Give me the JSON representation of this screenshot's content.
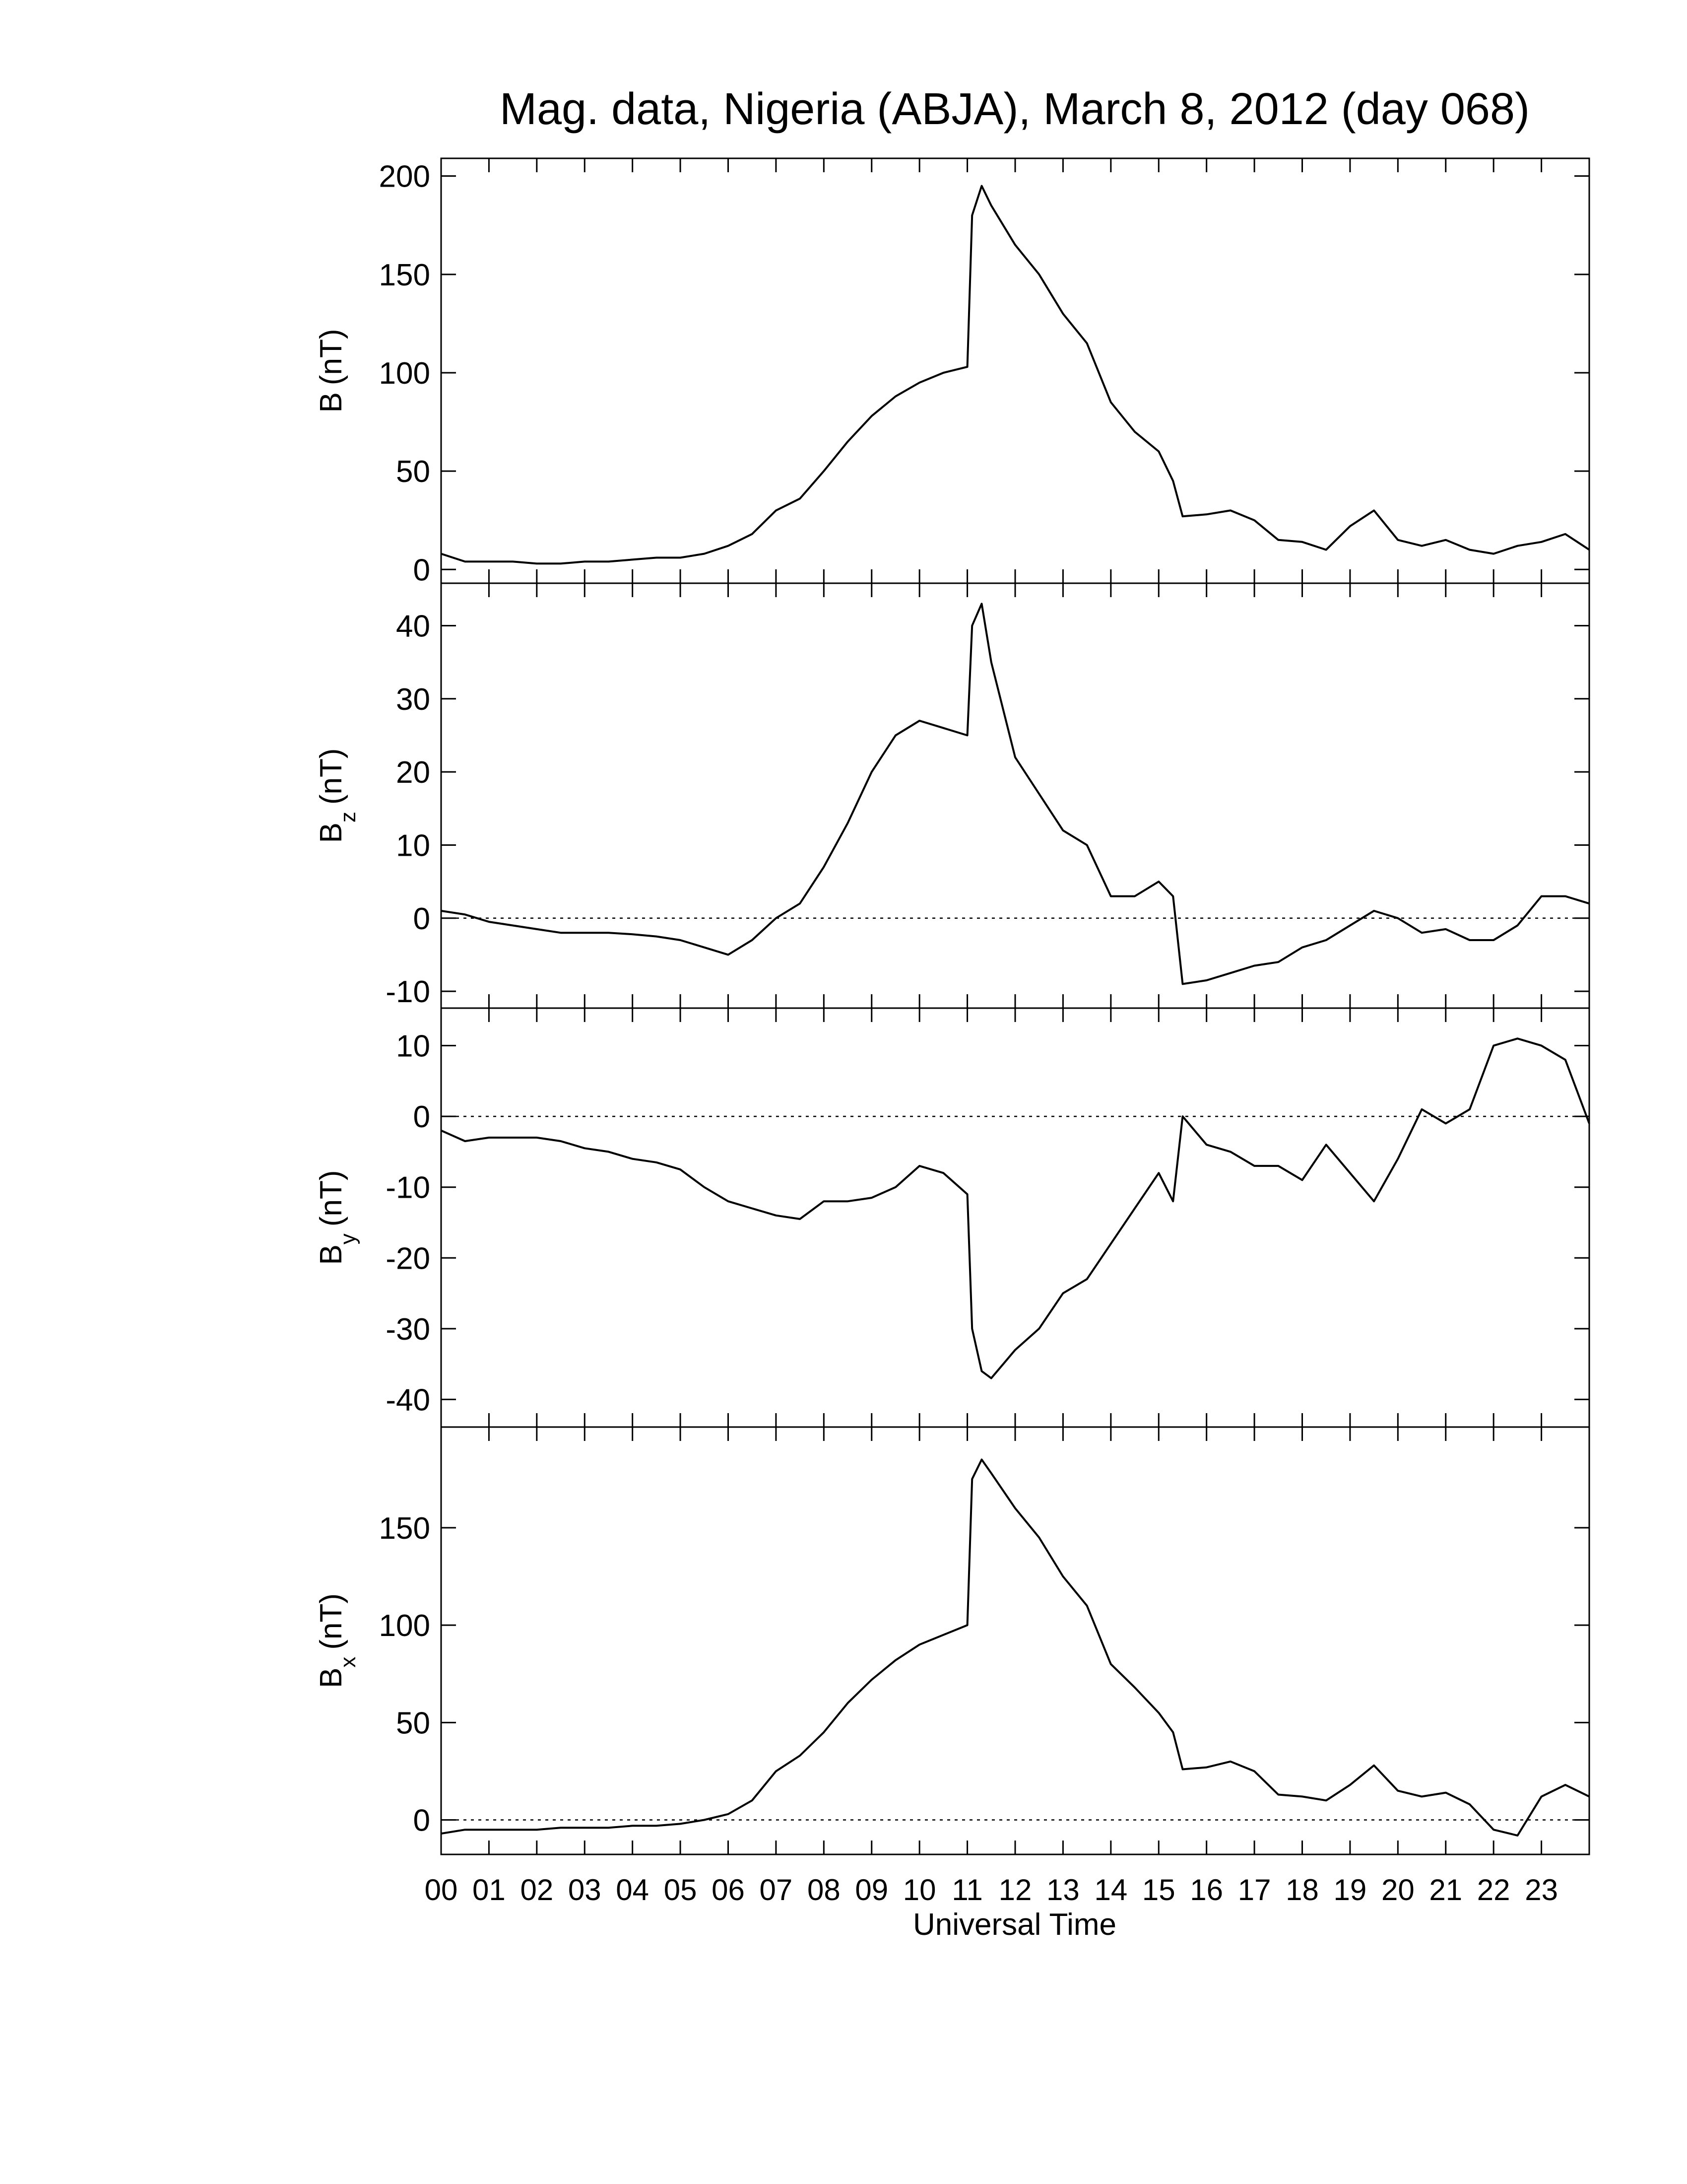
{
  "chart_data": [
    {
      "type": "line",
      "title": "Mag. data, Nigeria (ABJA), March 8, 2012 (day 068)",
      "ylabel": "B",
      "ylabel_unit": "(nT)",
      "color": "#000000",
      "zero_line": false,
      "xlim": [
        0,
        24
      ],
      "ylim": [
        -7,
        209
      ],
      "yticks": [
        0,
        50,
        100,
        150,
        200
      ],
      "x": [
        0,
        0.5,
        1,
        1.5,
        2,
        2.5,
        3,
        3.5,
        4,
        4.5,
        5,
        5.5,
        6,
        6.5,
        7,
        7.5,
        8,
        8.5,
        9,
        9.5,
        10,
        10.5,
        11,
        11.1,
        11.3,
        11.5,
        12,
        12.5,
        13,
        13.5,
        14,
        14.5,
        15,
        15.3,
        15.5,
        16,
        16.5,
        17,
        17.5,
        18,
        18.5,
        19,
        19.5,
        20,
        20.5,
        21,
        21.5,
        22,
        22.5,
        23,
        23.5,
        24
      ],
      "values": [
        8,
        4,
        4,
        4,
        3,
        3,
        4,
        4,
        5,
        6,
        6,
        8,
        12,
        18,
        30,
        36,
        50,
        65,
        78,
        88,
        95,
        100,
        103,
        180,
        195,
        185,
        165,
        150,
        130,
        115,
        85,
        70,
        60,
        45,
        27,
        28,
        30,
        25,
        15,
        14,
        10,
        22,
        30,
        15,
        12,
        15,
        10,
        8,
        12,
        14,
        18,
        10
      ]
    },
    {
      "type": "line",
      "ylabel": "B",
      "ylabel_sub": "z",
      "ylabel_unit": "(nT)",
      "color": "#000000",
      "zero_line": true,
      "xlim": [
        0,
        24
      ],
      "ylim": [
        -12.3,
        45.8
      ],
      "yticks": [
        -10,
        0,
        10,
        20,
        30,
        40
      ],
      "x": [
        0,
        0.5,
        1,
        1.5,
        2,
        2.5,
        3,
        3.5,
        4,
        4.5,
        5,
        5.5,
        6,
        6.5,
        7,
        7.5,
        8,
        8.5,
        9,
        9.5,
        10,
        10.5,
        11,
        11.1,
        11.3,
        11.5,
        12,
        12.5,
        13,
        13.5,
        14,
        14.5,
        15,
        15.3,
        15.5,
        16,
        16.5,
        17,
        17.5,
        18,
        18.5,
        19,
        19.5,
        20,
        20.5,
        21,
        21.5,
        22,
        22.5,
        23,
        23.5,
        24
      ],
      "values": [
        1,
        0.5,
        -0.5,
        -1,
        -1.5,
        -2,
        -2,
        -2,
        -2.2,
        -2.5,
        -3,
        -4,
        -5,
        -3,
        0,
        2,
        7,
        13,
        20,
        25,
        27,
        26,
        25,
        40,
        43,
        35,
        22,
        17,
        12,
        10,
        3,
        3,
        5,
        3,
        -9,
        -8.5,
        -7.5,
        -6.5,
        -6,
        -4,
        -3,
        -1,
        1,
        0,
        -2,
        -1.5,
        -3,
        -3,
        -1,
        3,
        3,
        2
      ]
    },
    {
      "type": "line",
      "ylabel": "B",
      "ylabel_sub": "y",
      "ylabel_unit": "(nT)",
      "color": "#000000",
      "zero_line": true,
      "xlim": [
        0,
        24
      ],
      "ylim": [
        -43.9,
        15.3
      ],
      "yticks": [
        -40,
        -30,
        -20,
        -10,
        0,
        10
      ],
      "x": [
        0,
        0.5,
        1,
        1.5,
        2,
        2.5,
        3,
        3.5,
        4,
        4.5,
        5,
        5.5,
        6,
        6.5,
        7,
        7.5,
        8,
        8.5,
        9,
        9.5,
        10,
        10.5,
        11,
        11.1,
        11.3,
        11.5,
        12,
        12.5,
        13,
        13.5,
        14,
        14.5,
        15,
        15.3,
        15.5,
        16,
        16.5,
        17,
        17.5,
        18,
        18.5,
        19,
        19.5,
        20,
        20.5,
        21,
        21.5,
        22,
        22.5,
        23,
        23.5,
        24
      ],
      "values": [
        -2,
        -3.5,
        -3,
        -3,
        -3,
        -3.5,
        -4.5,
        -5,
        -6,
        -6.5,
        -7.5,
        -10,
        -12,
        -13,
        -14,
        -14.5,
        -12,
        -12,
        -11.5,
        -10,
        -7,
        -8,
        -11,
        -30,
        -36,
        -37,
        -33,
        -30,
        -25,
        -23,
        -18,
        -13,
        -8,
        -12,
        0,
        -4,
        -5,
        -7,
        -7,
        -9,
        -4,
        -8,
        -12,
        -6,
        1,
        -1,
        1,
        10,
        11,
        10,
        8,
        -1
      ]
    },
    {
      "type": "line",
      "ylabel": "B",
      "ylabel_sub": "x",
      "ylabel_unit": "(nT)",
      "color": "#000000",
      "zero_line": true,
      "xlabel": "Universal Time",
      "xlim": [
        0,
        24
      ],
      "ylim": [
        -17.7,
        201.7
      ],
      "yticks": [
        0,
        50,
        100,
        150
      ],
      "xticks": [
        {
          "value": 0,
          "label": "00"
        },
        {
          "value": 1,
          "label": "01"
        },
        {
          "value": 2,
          "label": "02"
        },
        {
          "value": 3,
          "label": "03"
        },
        {
          "value": 4,
          "label": "04"
        },
        {
          "value": 5,
          "label": "05"
        },
        {
          "value": 6,
          "label": "06"
        },
        {
          "value": 7,
          "label": "07"
        },
        {
          "value": 8,
          "label": "08"
        },
        {
          "value": 9,
          "label": "09"
        },
        {
          "value": 10,
          "label": "10"
        },
        {
          "value": 11,
          "label": "11"
        },
        {
          "value": 12,
          "label": "12"
        },
        {
          "value": 13,
          "label": "13"
        },
        {
          "value": 14,
          "label": "14"
        },
        {
          "value": 15,
          "label": "15"
        },
        {
          "value": 16,
          "label": "16"
        },
        {
          "value": 17,
          "label": "17"
        },
        {
          "value": 18,
          "label": "18"
        },
        {
          "value": 19,
          "label": "19"
        },
        {
          "value": 20,
          "label": "20"
        },
        {
          "value": 21,
          "label": "21"
        },
        {
          "value": 22,
          "label": "22"
        },
        {
          "value": 23,
          "label": "23"
        }
      ],
      "x": [
        0,
        0.5,
        1,
        1.5,
        2,
        2.5,
        3,
        3.5,
        4,
        4.5,
        5,
        5.5,
        6,
        6.5,
        7,
        7.5,
        8,
        8.5,
        9,
        9.5,
        10,
        10.5,
        11,
        11.1,
        11.3,
        11.5,
        12,
        12.5,
        13,
        13.5,
        14,
        14.5,
        15,
        15.3,
        15.5,
        16,
        16.5,
        17,
        17.5,
        18,
        18.5,
        19,
        19.5,
        20,
        20.5,
        21,
        21.5,
        22,
        22.5,
        23,
        23.5,
        24
      ],
      "values": [
        -7,
        -5,
        -5,
        -5,
        -5,
        -4,
        -4,
        -4,
        -3,
        -3,
        -2,
        0,
        3,
        10,
        25,
        33,
        45,
        60,
        72,
        82,
        90,
        95,
        100,
        175,
        185,
        178,
        160,
        145,
        125,
        110,
        80,
        68,
        55,
        45,
        26,
        27,
        30,
        25,
        13,
        12,
        10,
        18,
        28,
        15,
        12,
        14,
        8,
        -5,
        -8,
        12,
        18,
        12
      ]
    }
  ]
}
